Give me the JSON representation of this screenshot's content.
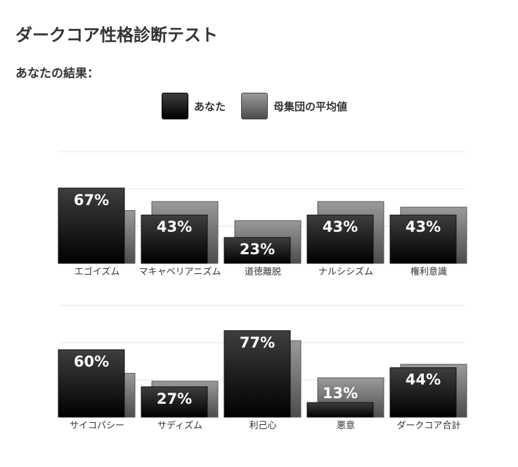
{
  "page": {
    "title": "ダークコア性格診断テスト",
    "subtitle": "あなたの結果："
  },
  "chart_data": [
    {
      "type": "bar",
      "categories": [
        "エゴイズム",
        "マキャベリアニズム",
        "道徳離脱",
        "ナルシシズム",
        "権利意識"
      ],
      "series": [
        {
          "name": "あなた",
          "values": [
            67,
            43,
            23,
            43,
            43
          ]
        },
        {
          "name": "母集団の平均値",
          "values": [
            47,
            55,
            38,
            55,
            50
          ]
        }
      ],
      "value_labels": [
        "67%",
        "43%",
        "23%",
        "43%",
        "43%"
      ],
      "ylim": [
        0,
        100
      ],
      "grid": true,
      "legend": "top-center"
    },
    {
      "type": "bar",
      "categories": [
        "サイコパシー",
        "サディズム",
        "利己心",
        "悪意",
        "ダークコア合計"
      ],
      "series": [
        {
          "name": "あなた",
          "values": [
            60,
            27,
            77,
            13,
            44
          ]
        },
        {
          "name": "母集団の平均値",
          "values": [
            39,
            32,
            68,
            35,
            47
          ]
        }
      ],
      "value_labels": [
        "60%",
        "27%",
        "77%",
        "13%",
        "44%"
      ],
      "ylim": [
        0,
        100
      ],
      "grid": true,
      "legend": "top-center"
    }
  ],
  "colors": {
    "you_top": "#3e3e3e",
    "you_bottom": "#000000",
    "avg_top": "#9a9a9a",
    "avg_bottom": "#4c4c4c",
    "grid": "#e6e6e6"
  }
}
